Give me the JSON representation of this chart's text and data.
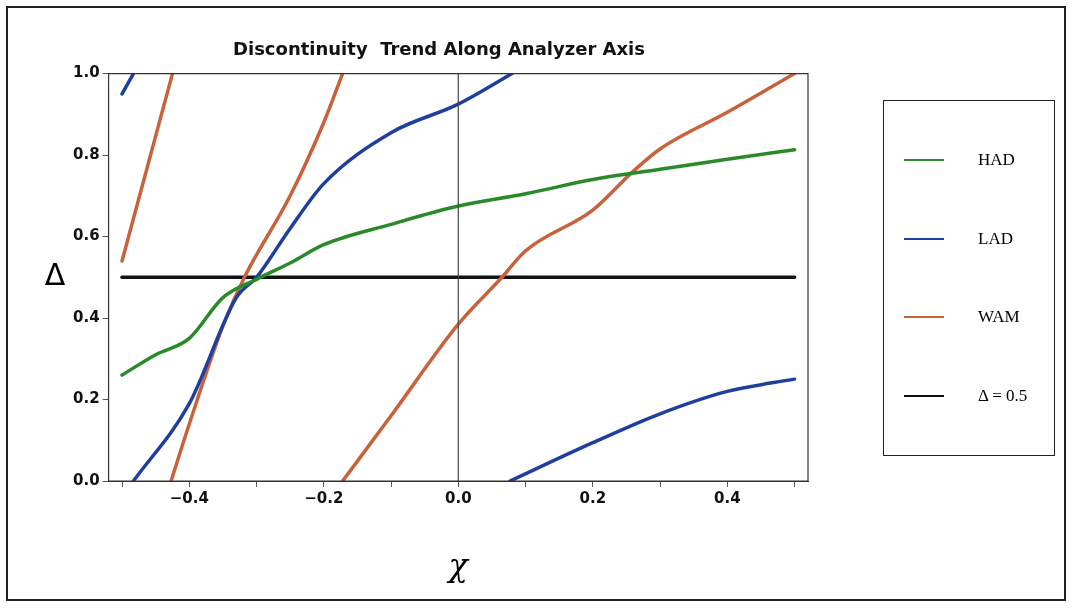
{
  "chart_data": {
    "type": "line",
    "title": "Discontinuity  Trend Along Analyzer Axis",
    "xlabel": "χ",
    "ylabel": "Δ",
    "xlim": [
      -0.52,
      0.52
    ],
    "ylim": [
      0,
      1
    ],
    "xticks": [
      {
        "value": -0.5,
        "label": null
      },
      {
        "value": -0.4,
        "label": "−0.4"
      },
      {
        "value": -0.3,
        "label": null
      },
      {
        "value": -0.2,
        "label": "−0.2"
      },
      {
        "value": -0.1,
        "label": null
      },
      {
        "value": 0,
        "label": "0.0"
      },
      {
        "value": 0.1,
        "label": null
      },
      {
        "value": 0.2,
        "label": "0.2"
      },
      {
        "value": 0.3,
        "label": null
      },
      {
        "value": 0.4,
        "label": "0.4"
      },
      {
        "value": 0.5,
        "label": null
      }
    ],
    "yticks": [
      {
        "value": 0,
        "label": "0.0"
      },
      {
        "value": 0.2,
        "label": "0.2"
      },
      {
        "value": 0.4,
        "label": "0.4"
      },
      {
        "value": 0.6,
        "label": "0.6"
      },
      {
        "value": 0.8,
        "label": "0.8"
      },
      {
        "value": 1,
        "label": "1.0"
      }
    ],
    "grid": false,
    "legend": "right",
    "marker": "none",
    "line_style": "solid",
    "ref_lines": [
      {
        "axis": "x",
        "value": 0,
        "color": "#444444"
      }
    ],
    "series": [
      {
        "name": "HAD",
        "color": "#2a8a2a",
        "x": [
          -0.5,
          -0.45,
          -0.4,
          -0.35,
          -0.3,
          -0.25,
          -0.2,
          -0.1,
          0,
          0.1,
          0.2,
          0.3,
          0.4,
          0.5
        ],
        "values": [
          0.26,
          0.31,
          0.35,
          0.45,
          0.495,
          0.535,
          0.58,
          0.63,
          0.675,
          0.705,
          0.74,
          0.765,
          0.79,
          0.813
        ]
      },
      {
        "name": "LAD",
        "color": "#1f3f9f",
        "x": [
          -0.483,
          -0.4,
          -0.33,
          -0.3,
          -0.25,
          -0.2,
          -0.1,
          0,
          0.08
        ],
        "values": [
          0,
          0.19,
          0.45,
          0.5,
          0.62,
          0.73,
          0.855,
          0.925,
          1.0
        ]
      },
      {
        "color": "#1f3f9f",
        "x": [
          -0.5,
          -0.483
        ],
        "values": [
          0.95,
          1.0
        ]
      },
      {
        "color": "#1f3f9f",
        "x": [
          0.077,
          0.2,
          0.3,
          0.4,
          0.5
        ],
        "values": [
          0,
          0.094,
          0.165,
          0.22,
          0.25
        ]
      },
      {
        "name": "WAM",
        "color": "#c8623a",
        "x": [
          -0.427,
          -0.4,
          -0.35,
          -0.318,
          -0.25,
          -0.2,
          -0.172
        ],
        "values": [
          0,
          0.14,
          0.38,
          0.5,
          0.7,
          0.88,
          1.0
        ]
      },
      {
        "color": "#c8623a",
        "x": [
          -0.5,
          -0.425
        ],
        "values": [
          0.54,
          1.0
        ]
      },
      {
        "color": "#c8623a",
        "x": [
          -0.172,
          -0.1,
          0,
          0.065,
          0.1,
          0.2,
          0.26,
          0.3,
          0.4,
          0.5
        ],
        "values": [
          0,
          0.16,
          0.385,
          0.5,
          0.565,
          0.665,
          0.76,
          0.815,
          0.905,
          1.0
        ]
      },
      {
        "name": "Δ = 0.5",
        "color": "#111111",
        "x": [
          -0.5,
          0.5
        ],
        "values": [
          0.5,
          0.5
        ]
      }
    ]
  }
}
